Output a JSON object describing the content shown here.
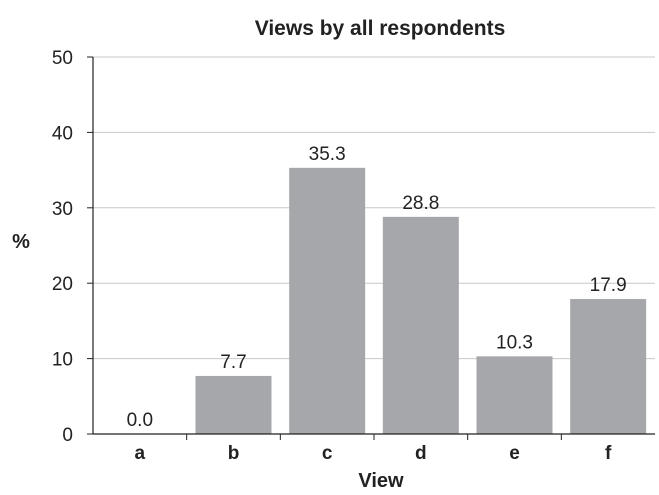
{
  "chart_data": {
    "type": "bar",
    "title": "Views by all respondents",
    "xlabel": "View",
    "ylabel": "%",
    "categories": [
      "a",
      "b",
      "c",
      "d",
      "e",
      "f"
    ],
    "values": [
      0.0,
      7.7,
      35.3,
      28.8,
      10.3,
      17.9
    ],
    "value_labels": [
      "0.0",
      "7.7",
      "35.3",
      "28.8",
      "10.3",
      "17.9"
    ],
    "y_ticks": [
      0,
      10,
      20,
      30,
      40,
      50
    ],
    "ylim": [
      0,
      50
    ],
    "grid": true,
    "legend": "none",
    "colors": {
      "bar": "#a6a7ab",
      "grid": "#c8c8c8",
      "axis": "#222222"
    }
  }
}
